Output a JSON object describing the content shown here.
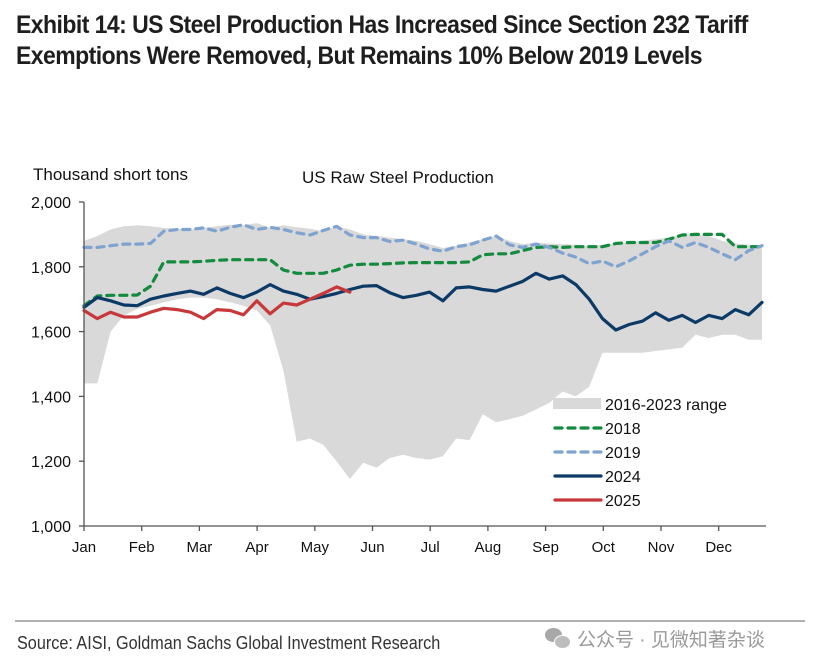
{
  "exhibit": {
    "title": "Exhibit 14: US Steel Production Has Increased Since Section 232 Tariff Exemptions Were Removed, But Remains 10% Below 2019 Levels"
  },
  "footer": {
    "source": "Source: AISI, Goldman Sachs Global Investment Research",
    "watermark": "公众号 · 见微知著杂谈"
  },
  "chart_data": {
    "type": "line",
    "title": "US Raw Steel Production",
    "ylabel": "Thousand short tons",
    "xlabel": "",
    "ylim": [
      1000,
      2000
    ],
    "yticks": [
      1000,
      1200,
      1400,
      1600,
      1800,
      2000
    ],
    "ytick_labels": [
      "1,000",
      "1,200",
      "1,400",
      "1,600",
      "1,800",
      "2,000"
    ],
    "xtick_labels": [
      "Jan",
      "Feb",
      "Mar",
      "Apr",
      "May",
      "Jun",
      "Jul",
      "Aug",
      "Sep",
      "Oct",
      "Nov",
      "Dec"
    ],
    "x_unit": "week of year",
    "x_range": [
      1,
      52
    ],
    "grid": false,
    "legend_position": "lower-right",
    "colors": {
      "range": "#d9d9d9",
      "2018": "#138a3e",
      "2019": "#7fa3d1",
      "2024": "#0c3a66",
      "2025": "#c8383a"
    },
    "range_band": {
      "name": "2016-2023 range",
      "upper": [
        1880,
        1895,
        1915,
        1925,
        1928,
        1925,
        1920,
        1918,
        1915,
        1920,
        1925,
        1930,
        1928,
        1935,
        1920,
        1928,
        1922,
        1918,
        1910,
        1925,
        1915,
        1900,
        1895,
        1890,
        1885,
        1880,
        1870,
        1858,
        1865,
        1875,
        1885,
        1895,
        1880,
        1870,
        1875,
        1872,
        1870,
        1868,
        1865,
        1868,
        1872,
        1875,
        1880,
        1885,
        1890,
        1900,
        1900,
        1895,
        1880,
        1872,
        1868,
        1865
      ],
      "lower": [
        1440,
        1440,
        1600,
        1650,
        1670,
        1680,
        1690,
        1700,
        1705,
        1705,
        1700,
        1690,
        1680,
        1665,
        1620,
        1480,
        1260,
        1270,
        1250,
        1200,
        1145,
        1195,
        1180,
        1210,
        1220,
        1210,
        1205,
        1215,
        1270,
        1265,
        1345,
        1320,
        1330,
        1340,
        1360,
        1380,
        1415,
        1400,
        1430,
        1535,
        1535,
        1535,
        1535,
        1540,
        1545,
        1550,
        1590,
        1580,
        1590,
        1590,
        1575,
        1575
      ]
    },
    "series": [
      {
        "name": "2018",
        "style": "dashed",
        "values": [
          1680,
          1710,
          1712,
          1712,
          1713,
          1740,
          1815,
          1815,
          1815,
          1817,
          1820,
          1822,
          1822,
          1822,
          1822,
          1790,
          1780,
          1780,
          1780,
          1790,
          1805,
          1808,
          1808,
          1810,
          1812,
          1813,
          1813,
          1813,
          1813,
          1815,
          1837,
          1840,
          1840,
          1850,
          1860,
          1862,
          1860,
          1862,
          1862,
          1862,
          1872,
          1875,
          1875,
          1875,
          1885,
          1898,
          1900,
          1900,
          1900,
          1862,
          1862,
          1862
        ]
      },
      {
        "name": "2019",
        "style": "dashed",
        "values": [
          1860,
          1860,
          1865,
          1870,
          1870,
          1872,
          1910,
          1915,
          1915,
          1920,
          1910,
          1922,
          1930,
          1915,
          1922,
          1915,
          1905,
          1898,
          1912,
          1925,
          1898,
          1890,
          1890,
          1878,
          1882,
          1870,
          1855,
          1848,
          1862,
          1868,
          1882,
          1895,
          1868,
          1860,
          1870,
          1860,
          1842,
          1830,
          1810,
          1818,
          1800,
          1818,
          1840,
          1862,
          1880,
          1860,
          1875,
          1860,
          1840,
          1822,
          1850,
          1865
        ]
      },
      {
        "name": "2024",
        "style": "solid",
        "values": [
          1675,
          1705,
          1695,
          1682,
          1680,
          1700,
          1710,
          1718,
          1725,
          1715,
          1735,
          1718,
          1705,
          1722,
          1745,
          1725,
          1715,
          1700,
          1708,
          1718,
          1730,
          1740,
          1742,
          1720,
          1705,
          1712,
          1722,
          1695,
          1735,
          1738,
          1730,
          1725,
          1740,
          1755,
          1780,
          1762,
          1772,
          1745,
          1700,
          1640,
          1605,
          1622,
          1632,
          1658,
          1635,
          1650,
          1628,
          1650,
          1640,
          1668,
          1652,
          1690
        ]
      },
      {
        "name": "2025",
        "style": "solid",
        "values": [
          1665,
          1640,
          1660,
          1645,
          1645,
          1660,
          1672,
          1668,
          1660,
          1640,
          1668,
          1665,
          1652,
          1695,
          1655,
          1688,
          1682,
          1700,
          1718,
          1738,
          1722
        ]
      }
    ],
    "legend": [
      {
        "label": "2016-2023 range",
        "key": "range"
      },
      {
        "label": "2018",
        "key": "2018"
      },
      {
        "label": "2019",
        "key": "2019"
      },
      {
        "label": "2024",
        "key": "2024"
      },
      {
        "label": "2025",
        "key": "2025"
      }
    ]
  }
}
